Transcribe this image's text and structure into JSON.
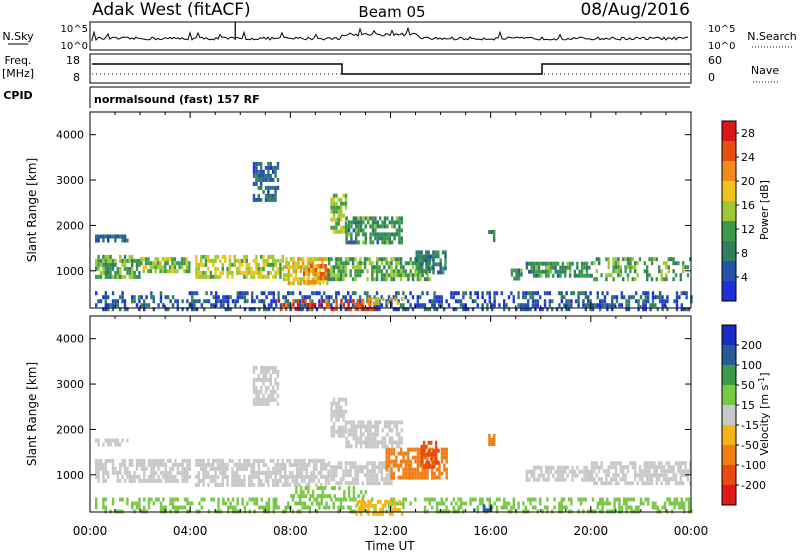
{
  "header": {
    "station": "Adak West (fitACF)",
    "beam": "Beam 05",
    "date": "08/Aug/2016"
  },
  "top_panels": {
    "nsky_label": "N.Sky",
    "nsky_tick_hi": "10^5",
    "nsky_tick_lo": "10^0",
    "nsearch_label": "N.Search",
    "freq_label": "Freq.",
    "freq_unit": "[MHz]",
    "freq_tick_hi": "18",
    "freq_tick_lo": "8",
    "nave_tick_hi": "60",
    "nave_tick_lo": "0",
    "nave_label": "Nave",
    "cpid_label": "CPID",
    "cpid_name": "normalsound (fast) 157 RF"
  },
  "colors": {
    "power_scale": [
      "#1f2fd8",
      "#2452a8",
      "#2f7f5e",
      "#3a9a4a",
      "#9fc832",
      "#f0c41c",
      "#f08a1a",
      "#e55010",
      "#d81818"
    ],
    "velocity_scale": [
      "#e01818",
      "#e84a10",
      "#f07e14",
      "#f2b418",
      "#c8c8c8",
      "#78c848",
      "#3c9a48",
      "#2a5a9a",
      "#1c2cc0"
    ]
  },
  "chart_data": [
    {
      "type": "heatmap",
      "name": "power",
      "xlabel": "",
      "ylabel": "Slant Range [km]",
      "x_ticks": [
        "00:00",
        "04:00",
        "08:00",
        "12:00",
        "16:00",
        "20:00",
        "00:00"
      ],
      "y_ticks": [
        1000,
        2000,
        3000,
        4000
      ],
      "xlim_hours": [
        0,
        24
      ],
      "ylim_km": [
        180,
        4500
      ],
      "colorbar": {
        "label": "Power [dB]",
        "ticks": [
          4,
          8,
          12,
          16,
          20,
          24,
          28
        ],
        "range": [
          0,
          30
        ]
      },
      "regions": [
        {
          "t0": 0.2,
          "t1": 2.0,
          "r0": 850,
          "r1": 1350,
          "v": 12
        },
        {
          "t0": 2.0,
          "t1": 4.0,
          "r0": 950,
          "r1": 1300,
          "v": 14
        },
        {
          "t0": 4.2,
          "t1": 7.7,
          "r0": 850,
          "r1": 1350,
          "v": 16
        },
        {
          "t0": 7.7,
          "t1": 9.5,
          "r0": 750,
          "r1": 1300,
          "v": 18
        },
        {
          "t0": 8.5,
          "t1": 9.5,
          "r0": 750,
          "r1": 1150,
          "v": 22
        },
        {
          "t0": 9.5,
          "t1": 13.7,
          "r0": 850,
          "r1": 1300,
          "v": 12
        },
        {
          "t0": 9.6,
          "t1": 10.2,
          "r0": 1900,
          "r1": 2700,
          "v": 14
        },
        {
          "t0": 10.2,
          "t1": 12.5,
          "r0": 1600,
          "r1": 2200,
          "v": 10
        },
        {
          "t0": 13.0,
          "t1": 14.2,
          "r0": 1000,
          "r1": 1450,
          "v": 8
        },
        {
          "t0": 0.2,
          "t1": 1.5,
          "r0": 1650,
          "r1": 1800,
          "v": 6
        },
        {
          "t0": 6.5,
          "t1": 7.5,
          "r0": 2600,
          "r1": 3400,
          "v": 6
        },
        {
          "t0": 15.9,
          "t1": 16.1,
          "r0": 1700,
          "r1": 1900,
          "v": 10
        },
        {
          "t0": 16.8,
          "t1": 17.2,
          "r0": 850,
          "r1": 1050,
          "v": 10
        },
        {
          "t0": 17.4,
          "t1": 20.0,
          "r0": 850,
          "r1": 1200,
          "v": 10
        },
        {
          "t0": 20.0,
          "t1": 24.0,
          "r0": 850,
          "r1": 1300,
          "v": 12
        },
        {
          "t0": 0.2,
          "t1": 24.0,
          "r0": 180,
          "r1": 550,
          "v": 5
        },
        {
          "t0": 7.5,
          "t1": 11.5,
          "r0": 180,
          "r1": 380,
          "v": 26
        },
        {
          "t0": 10.8,
          "t1": 12.5,
          "r0": 250,
          "r1": 420,
          "v": 18
        }
      ]
    },
    {
      "type": "heatmap",
      "name": "velocity",
      "xlabel": "Time UT",
      "ylabel": "Slant Range [km]",
      "x_ticks": [
        "00:00",
        "04:00",
        "08:00",
        "12:00",
        "16:00",
        "20:00",
        "00:00"
      ],
      "y_ticks": [
        1000,
        2000,
        3000,
        4000
      ],
      "xlim_hours": [
        0,
        24
      ],
      "ylim_km": [
        180,
        4500
      ],
      "colorbar": {
        "label": "Velocity [m s^-1]",
        "ticks": [
          -200,
          -100,
          -50,
          -15,
          15,
          50,
          100,
          200
        ]
      },
      "regions": [
        {
          "t0": 0.2,
          "t1": 4.0,
          "r0": 850,
          "r1": 1350,
          "v": 0
        },
        {
          "t0": 4.2,
          "t1": 9.5,
          "r0": 750,
          "r1": 1350,
          "v": 0
        },
        {
          "t0": 9.5,
          "t1": 12.0,
          "r0": 850,
          "r1": 1300,
          "v": 0
        },
        {
          "t0": 11.8,
          "t1": 14.2,
          "r0": 950,
          "r1": 1600,
          "v": -80
        },
        {
          "t0": 13.2,
          "t1": 13.9,
          "r0": 1200,
          "r1": 1750,
          "v": -150
        },
        {
          "t0": 9.6,
          "t1": 10.2,
          "r0": 1900,
          "r1": 2700,
          "v": 0
        },
        {
          "t0": 10.2,
          "t1": 12.5,
          "r0": 1600,
          "r1": 2200,
          "v": 0
        },
        {
          "t0": 0.2,
          "t1": 1.5,
          "r0": 1650,
          "r1": 1800,
          "v": 0
        },
        {
          "t0": 6.5,
          "t1": 7.5,
          "r0": 2600,
          "r1": 3400,
          "v": 0
        },
        {
          "t0": 15.9,
          "t1": 16.1,
          "r0": 1700,
          "r1": 1900,
          "v": -60
        },
        {
          "t0": 17.4,
          "t1": 20.0,
          "r0": 850,
          "r1": 1200,
          "v": 0
        },
        {
          "t0": 20.0,
          "t1": 24.0,
          "r0": 850,
          "r1": 1300,
          "v": 0
        },
        {
          "t0": 0.2,
          "t1": 24.0,
          "r0": 180,
          "r1": 500,
          "v": 40
        },
        {
          "t0": 8.0,
          "t1": 11.0,
          "r0": 500,
          "r1": 750,
          "v": 30
        },
        {
          "t0": 10.5,
          "t1": 12.5,
          "r0": 180,
          "r1": 450,
          "v": -40
        },
        {
          "t0": 15.3,
          "t1": 16.0,
          "r0": 180,
          "r1": 350,
          "v": 150
        }
      ]
    }
  ]
}
